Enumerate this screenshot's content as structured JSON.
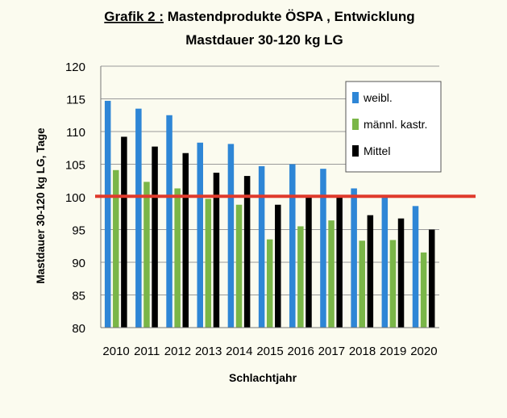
{
  "chart_data": {
    "type": "bar",
    "title_prefix": "Grafik 2 :",
    "title_rest": " Mastendprodukte ÖSPA , Entwicklung",
    "subtitle": "Mastdauer 30-120 kg LG",
    "xlabel": "Schlachtjahr",
    "ylabel": "Mastdauer  30-120 kg LG, Tage",
    "ylim": [
      80,
      120
    ],
    "yticks": [
      "80",
      "85",
      "90",
      "95",
      "100",
      "105",
      "110",
      "115",
      "120"
    ],
    "categories": [
      "2010",
      "2011",
      "2012",
      "2013",
      "2014",
      "2015",
      "2016",
      "2017",
      "2018",
      "2019",
      "2020"
    ],
    "series": [
      {
        "name": "weibl.",
        "color": "#2e86d6",
        "values": [
          114.7,
          113.5,
          112.5,
          108.3,
          108.1,
          104.7,
          105.0,
          104.3,
          101.3,
          100.3,
          98.6
        ]
      },
      {
        "name": "männl. kastr.",
        "color": "#7ab648",
        "values": [
          104.1,
          102.3,
          101.3,
          99.7,
          98.8,
          93.5,
          95.5,
          96.4,
          93.3,
          93.4,
          91.5
        ]
      },
      {
        "name": "Mittel",
        "color": "#000000",
        "values": [
          109.2,
          107.7,
          106.7,
          103.7,
          103.2,
          98.8,
          100.0,
          100.0,
          97.2,
          96.7,
          95.0
        ]
      }
    ],
    "reference_line": {
      "value": 100.1,
      "color": "#e03a2c"
    },
    "legend_position": "top-right"
  }
}
